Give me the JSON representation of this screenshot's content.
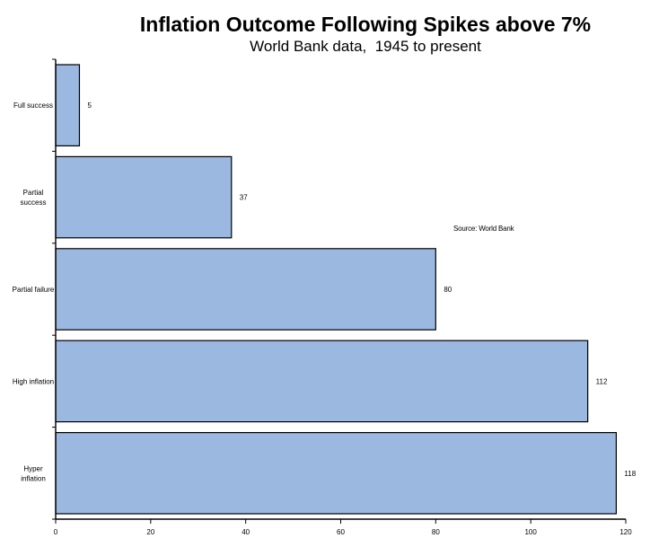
{
  "chart_data": {
    "type": "bar",
    "orientation": "horizontal",
    "title": "Inflation Outcome Following Spikes above 7%",
    "subtitle": "World Bank data,  1945 to present",
    "annotation": "Source: World Bank",
    "categories": [
      [
        "Full success"
      ],
      [
        "Partial",
        "success"
      ],
      [
        "Partial failure"
      ],
      [
        "High inflation"
      ],
      [
        "Hyper",
        "inflation"
      ]
    ],
    "values": [
      5,
      37,
      80,
      112,
      118
    ],
    "xlim": [
      0,
      120
    ],
    "xticks": [
      0,
      20,
      40,
      60,
      80,
      100,
      120
    ],
    "grid": false,
    "colors": {
      "bar_fill": "#9ab8e0",
      "bar_stroke": "#000000",
      "axis": "#000000"
    }
  }
}
